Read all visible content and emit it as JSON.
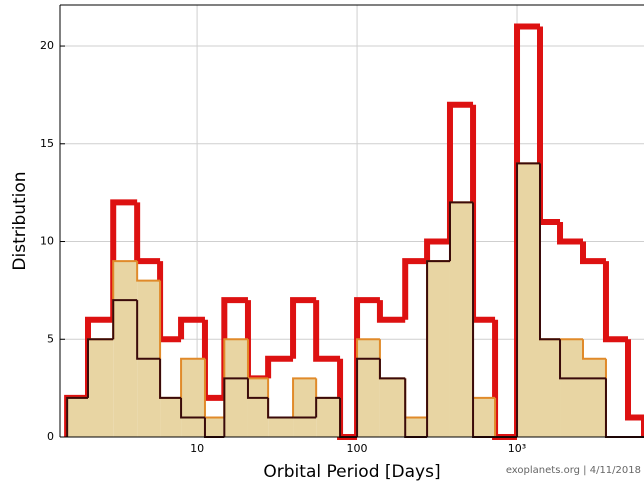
{
  "chart_data": {
    "type": "histogram",
    "x_label": "Orbital Period [Days]",
    "y_label": "Distribution",
    "annotation": "exoplanets.org | 4/11/2018",
    "x_log": true,
    "grid": true,
    "bins": [
      1.54,
      2.08,
      2.99,
      4.22,
      5.87,
      7.94,
      11.2,
      14.8,
      20.8,
      27.8,
      39.8,
      55.5,
      78.3,
      100,
      139,
      200,
      274,
      381,
      531,
      729,
      1000,
      1392,
      1857,
      2585,
      3598,
      4941,
      6220
    ],
    "series": [
      {
        "color": "#dd1111",
        "values": [
          2,
          6,
          12,
          9,
          5,
          6,
          2,
          7,
          3,
          4,
          7,
          4,
          0,
          7,
          6,
          9,
          10,
          17,
          6,
          0,
          21,
          11,
          10,
          9,
          5,
          1
        ]
      },
      {
        "color": "#e08a2a",
        "fill": "#e8d5a3",
        "values": [
          2,
          5,
          9,
          8,
          2,
          4,
          1,
          5,
          3,
          1,
          3,
          2,
          0,
          5,
          3,
          1,
          9,
          12,
          2,
          0,
          14,
          5,
          5,
          4,
          0,
          0
        ]
      },
      {
        "color": "#3a0a0a",
        "values": [
          2,
          5,
          7,
          4,
          2,
          1,
          0,
          3,
          2,
          1,
          1,
          2,
          0,
          4,
          3,
          0,
          9,
          12,
          0,
          0,
          14,
          5,
          3,
          3,
          0,
          0
        ]
      }
    ],
    "xlim": [
      1.39,
      6220
    ],
    "xticks": [
      10,
      100,
      {
        "value": 1000,
        "label": "10³"
      }
    ],
    "ylim": [
      0,
      22.1
    ],
    "yticks": [
      0,
      5,
      10,
      15,
      20
    ]
  }
}
